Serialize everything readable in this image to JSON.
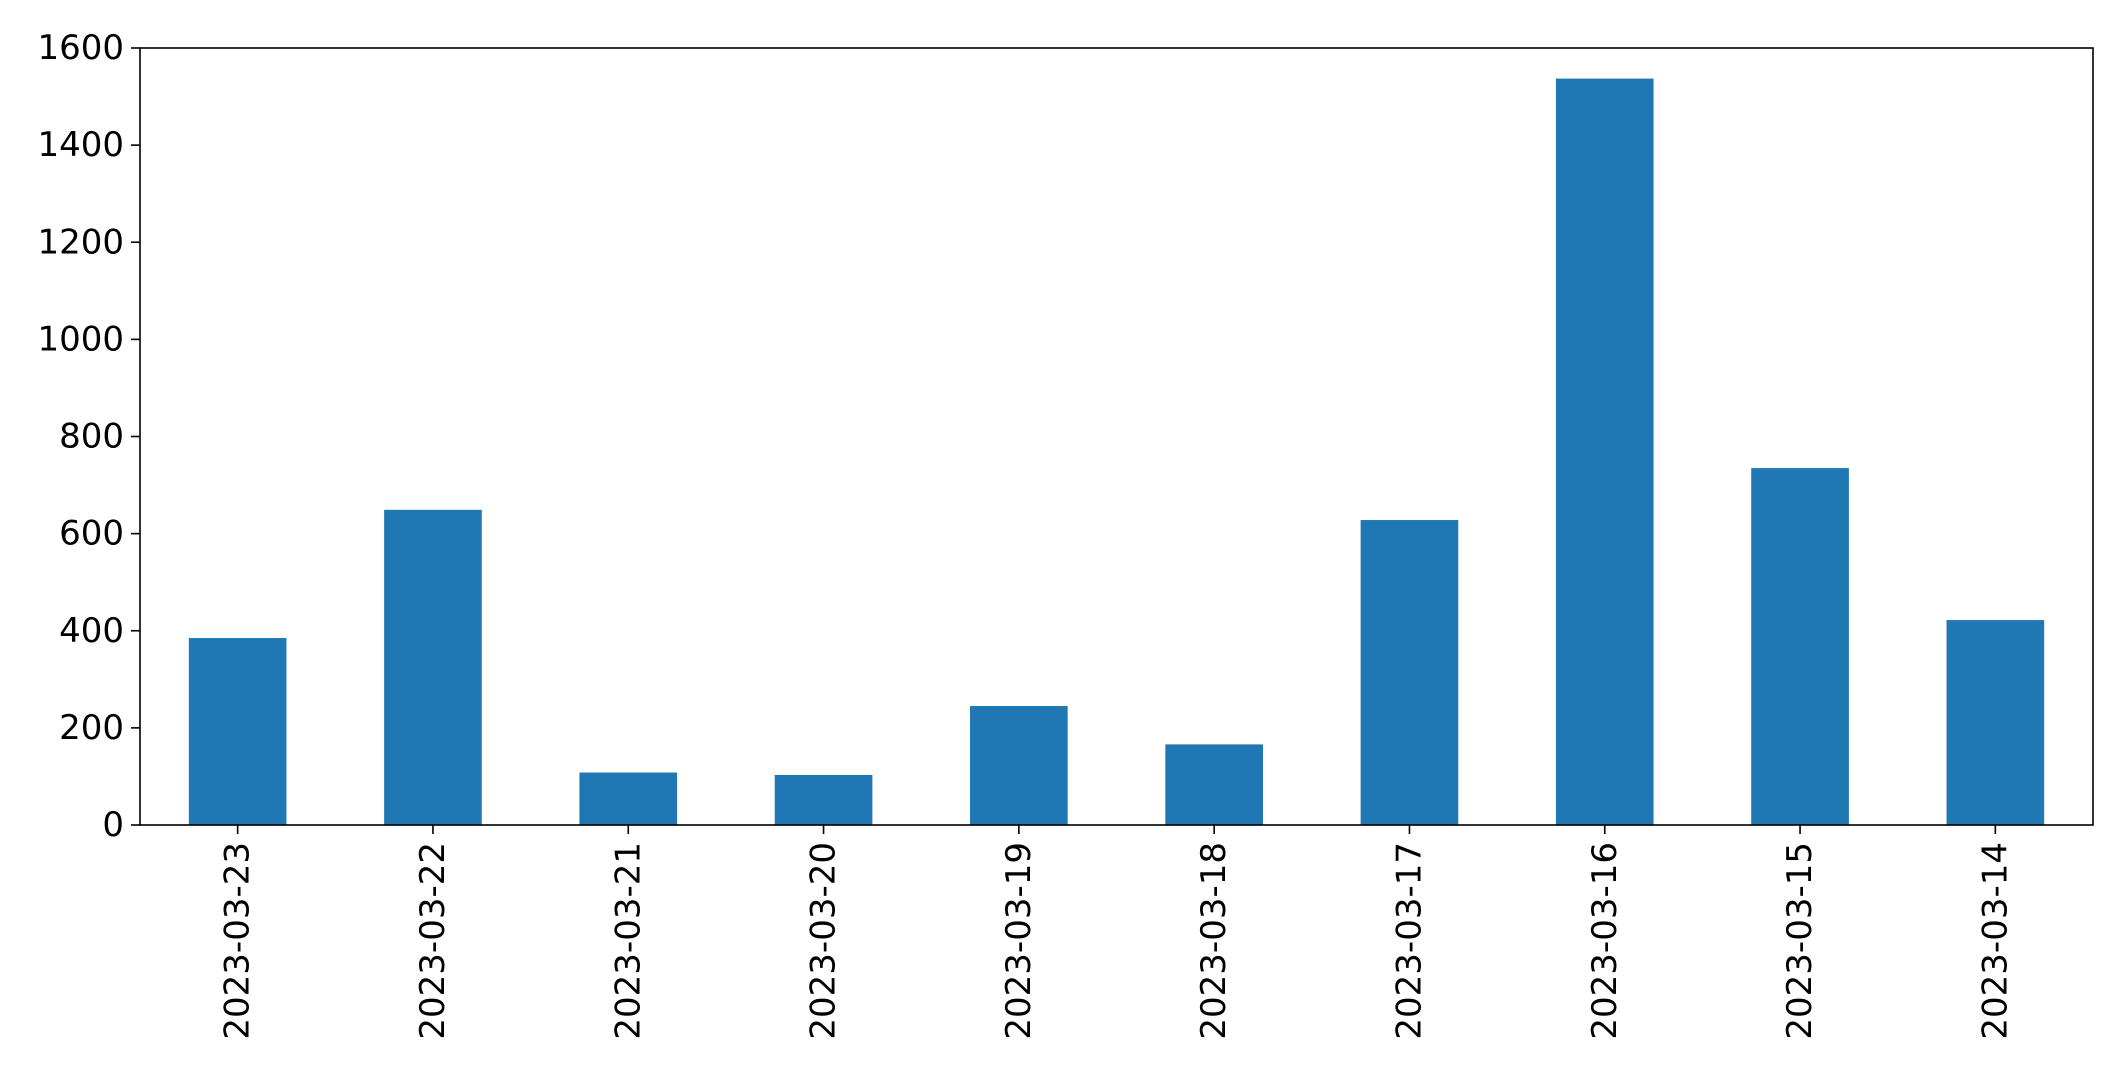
{
  "chart_data": {
    "type": "bar",
    "title": "",
    "xlabel": "",
    "ylabel": "",
    "categories": [
      "2023-03-23",
      "2023-03-22",
      "2023-03-21",
      "2023-03-20",
      "2023-03-19",
      "2023-03-18",
      "2023-03-17",
      "2023-03-16",
      "2023-03-15",
      "2023-03-14"
    ],
    "values": [
      385,
      649,
      108,
      103,
      245,
      166,
      628,
      1537,
      735,
      422
    ],
    "ylim": [
      0,
      1600
    ],
    "yticks": [
      0,
      200,
      400,
      600,
      800,
      1000,
      1200,
      1400,
      1600
    ],
    "ytick_labels": [
      "0",
      "200",
      "400",
      "600",
      "800",
      "1000",
      "1200",
      "1400",
      "1600"
    ],
    "bar_color": "#1f77b4",
    "grid": false,
    "legend": "none"
  }
}
